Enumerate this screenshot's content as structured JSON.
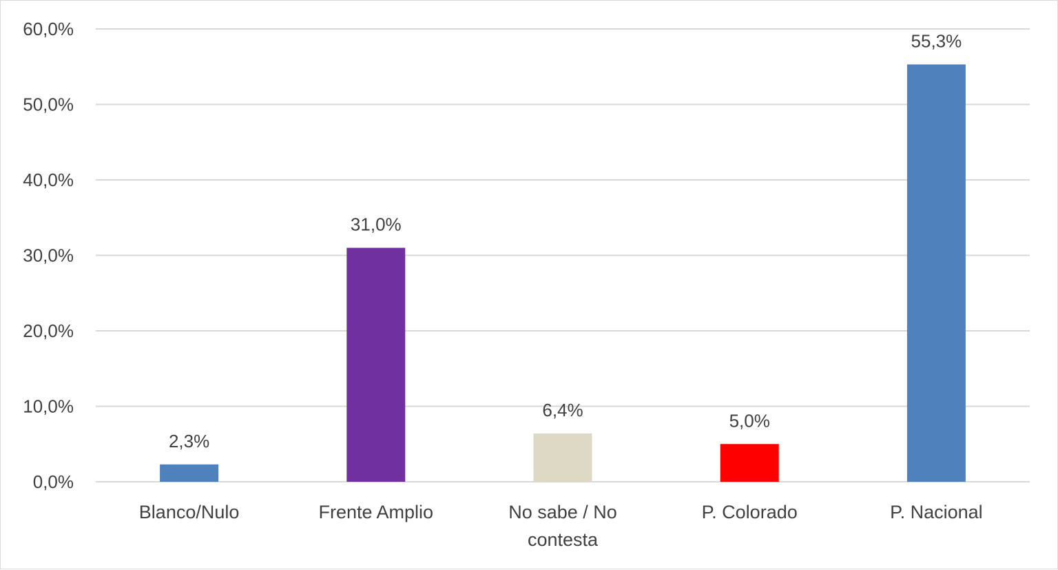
{
  "chart_data": {
    "type": "bar",
    "title": "",
    "xlabel": "",
    "ylabel": "",
    "ylim": [
      0,
      60
    ],
    "y_ticks": [
      "0,0%",
      "10,0%",
      "20,0%",
      "30,0%",
      "40,0%",
      "50,0%",
      "60,0%"
    ],
    "grid": true,
    "categories": [
      [
        "Blanco/Nulo"
      ],
      [
        "Frente Amplio"
      ],
      [
        "No sabe / No",
        "contesta"
      ],
      [
        "P. Colorado"
      ],
      [
        "P. Nacional"
      ]
    ],
    "values": [
      2.3,
      31.0,
      6.4,
      5.0,
      55.3
    ],
    "value_labels": [
      "2,3%",
      "31,0%",
      "6,4%",
      "5,0%",
      "55,3%"
    ],
    "colors": [
      "#4f81bd",
      "#7030a0",
      "#ddd9c4",
      "#ff0000",
      "#4f81bd"
    ]
  }
}
